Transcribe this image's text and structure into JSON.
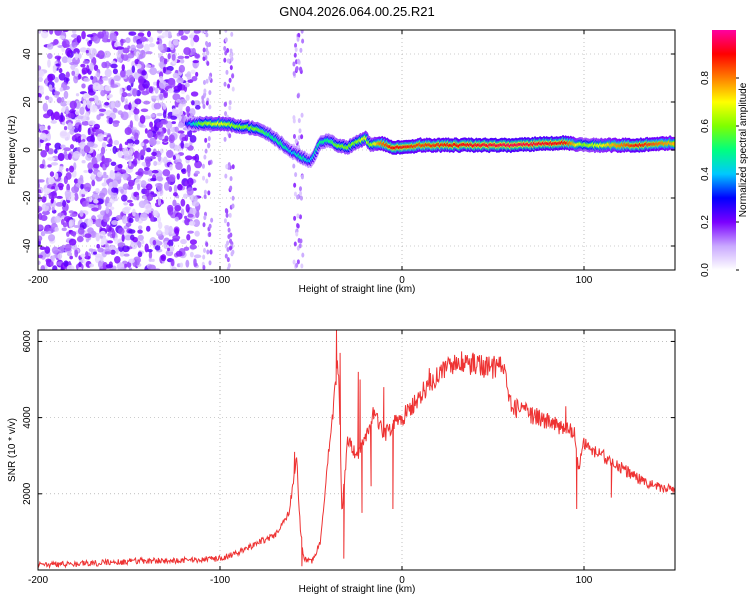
{
  "title": "GN04.2026.064.00.25.R21",
  "chart_data": [
    {
      "type": "heatmap",
      "title": "GN04.2026.064.00.25.R21",
      "xlabel": "Height of straight line (km)",
      "ylabel": "Frequency (Hz)",
      "xlim": [
        -200,
        150
      ],
      "ylim": [
        -50,
        50
      ],
      "xticks": [
        -200,
        -100,
        0,
        100
      ],
      "xtick_labels": [
        "-200",
        "-100",
        "0",
        "100"
      ],
      "yticks": [
        -40,
        -20,
        0,
        20,
        40
      ],
      "ytick_labels": [
        "-40",
        "-20",
        "0",
        "20",
        "40"
      ],
      "colorbar": {
        "label": "Normalized spectral amplitude",
        "range": [
          0,
          1
        ],
        "ticks": [
          0,
          0.2,
          0.4,
          0.6,
          0.8
        ],
        "tick_labels": [
          "0.0",
          "0.2",
          "0.4",
          "0.6",
          "0.8"
        ],
        "colors": [
          "#ffffff",
          "#c9a8ff",
          "#7a00ff",
          "#0000ff",
          "#00c8ff",
          "#00ff7f",
          "#7fff00",
          "#ffff00",
          "#ff7f00",
          "#ff0000",
          "#ff00a0"
        ]
      },
      "noise_region": {
        "x_from": -200,
        "x_to": -112,
        "amplitude": 0.2
      },
      "ridge": {
        "x": [
          -118,
          -110,
          -100,
          -90,
          -80,
          -72,
          -65,
          -60,
          -55,
          -50,
          -45,
          -40,
          -35,
          -30,
          -25,
          -20,
          -17,
          -12,
          -5,
          0,
          10,
          30,
          60,
          90,
          100,
          130,
          150
        ],
        "y": [
          11,
          11,
          11,
          10,
          9,
          6,
          2,
          -1,
          -3,
          -5,
          3,
          4,
          2,
          1,
          3,
          5,
          2,
          3,
          1,
          1,
          2,
          2,
          2,
          3,
          2,
          2,
          3
        ],
        "amp": [
          0.3,
          0.6,
          0.7,
          0.6,
          0.6,
          0.5,
          0.5,
          0.4,
          0.5,
          0.4,
          0.5,
          0.5,
          0.6,
          0.6,
          0.6,
          0.7,
          0.6,
          0.8,
          0.9,
          0.9,
          0.85,
          0.9,
          0.95,
          0.9,
          0.6,
          0.9,
          0.75
        ]
      }
    },
    {
      "type": "line",
      "series": [
        {
          "name": "SNR",
          "color": "#ee3333"
        }
      ],
      "xlabel": "Height of straight line (km)",
      "ylabel": "SNR (10 * v/v)",
      "xlim": [
        -200,
        150
      ],
      "ylim": [
        0,
        6300
      ],
      "xticks": [
        -200,
        -100,
        0,
        100
      ],
      "xtick_labels": [
        "-200",
        "-100",
        "0",
        "100"
      ],
      "yticks": [
        2000,
        4000,
        6000
      ],
      "ytick_labels": [
        "2000",
        "4000",
        "6000"
      ],
      "x": [
        -200,
        -180,
        -160,
        -140,
        -120,
        -100,
        -90,
        -80,
        -70,
        -62,
        -58,
        -56,
        -54,
        -50,
        -45,
        -40,
        -35,
        -33,
        -30,
        -25,
        -20,
        -15,
        -10,
        -5,
        0,
        5,
        10,
        15,
        20,
        25,
        30,
        35,
        40,
        45,
        50,
        55,
        60,
        70,
        80,
        90,
        95,
        97,
        100,
        110,
        120,
        130,
        140,
        150
      ],
      "y": [
        150,
        150,
        200,
        250,
        250,
        300,
        450,
        700,
        900,
        1500,
        3000,
        1200,
        300,
        200,
        700,
        3200,
        5500,
        1500,
        3400,
        3000,
        3500,
        4200,
        3500,
        3800,
        4000,
        4300,
        4600,
        4900,
        5100,
        5300,
        5500,
        5500,
        5400,
        5300,
        5300,
        5400,
        4300,
        4100,
        3900,
        3700,
        3600,
        2600,
        3300,
        3000,
        2700,
        2400,
        2200,
        2100
      ],
      "spikes": [
        {
          "x": -59,
          "y": 3100
        },
        {
          "x": -55,
          "y": 100
        },
        {
          "x": -36,
          "y": 6300
        },
        {
          "x": -34,
          "y": 5700
        },
        {
          "x": -32,
          "y": 300
        },
        {
          "x": -24,
          "y": 5200
        },
        {
          "x": -23,
          "y": 5000
        },
        {
          "x": -22,
          "y": 1500
        },
        {
          "x": -17,
          "y": 2200
        },
        {
          "x": -10,
          "y": 4800
        },
        {
          "x": -5,
          "y": 1600
        },
        {
          "x": 15,
          "y": 5300
        },
        {
          "x": 90,
          "y": 4300
        },
        {
          "x": 96,
          "y": 1600
        },
        {
          "x": 115,
          "y": 1900
        }
      ]
    }
  ]
}
